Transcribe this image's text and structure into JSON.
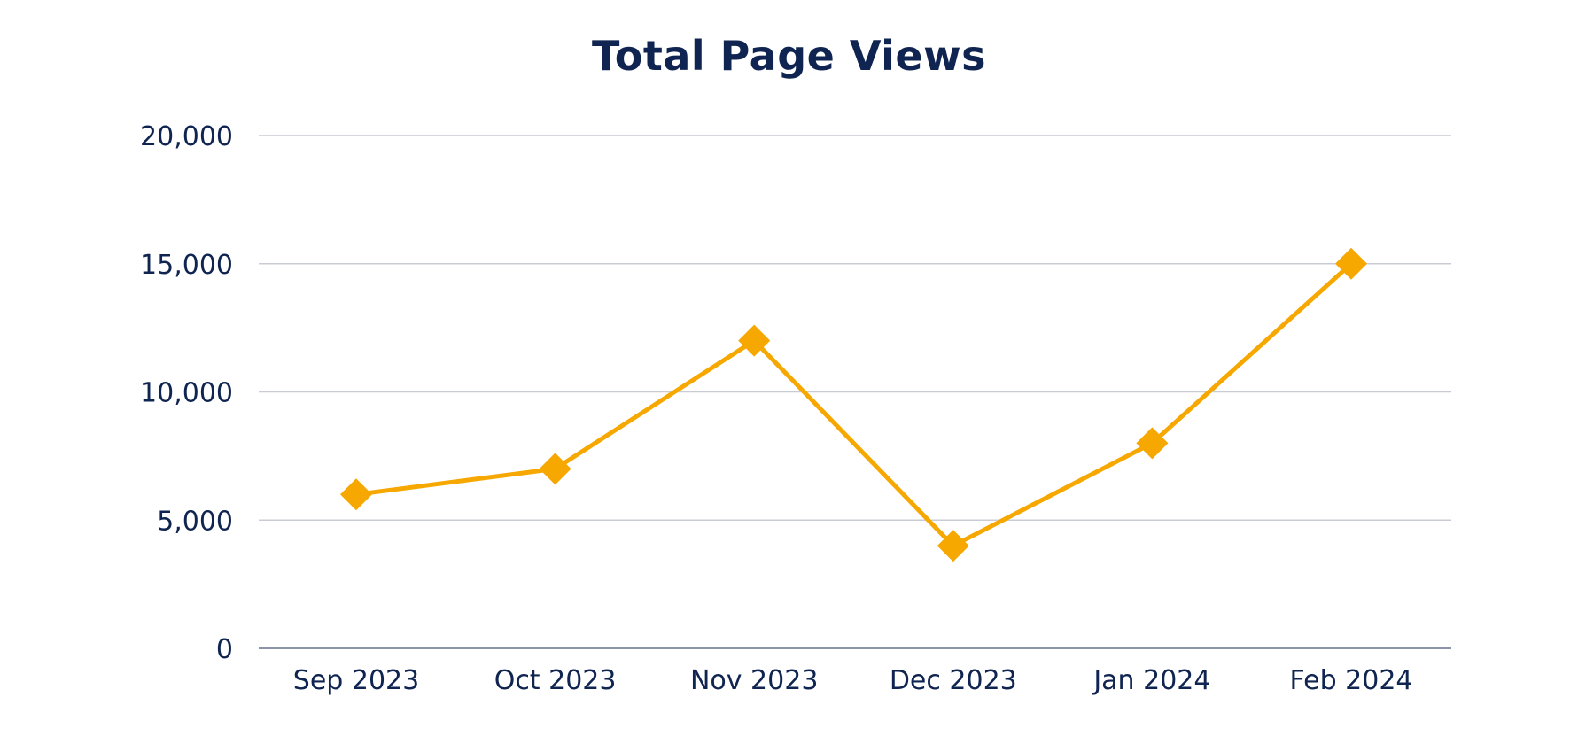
{
  "chart_data": {
    "type": "line",
    "title": "Total Page Views",
    "xlabel": "",
    "ylabel": "",
    "categories": [
      "Sep 2023",
      "Oct 2023",
      "Nov 2023",
      "Dec 2023",
      "Jan 2024",
      "Feb 2024"
    ],
    "series": [
      {
        "values": [
          6000,
          7000,
          12000,
          4000,
          8000,
          15000
        ],
        "color": "#f6a800",
        "marker": "diamond"
      }
    ],
    "ylim": [
      0,
      20000
    ],
    "yticks": [
      0,
      5000,
      10000,
      15000,
      20000
    ],
    "ytick_labels": [
      "0",
      "5,000",
      "10,000",
      "15,000",
      "20,000"
    ],
    "grid": true,
    "legend": "none"
  },
  "colors": {
    "title": "#0f2450",
    "tick_text": "#0f2450",
    "grid": "#c9ccd3",
    "series": "#f6a800"
  }
}
